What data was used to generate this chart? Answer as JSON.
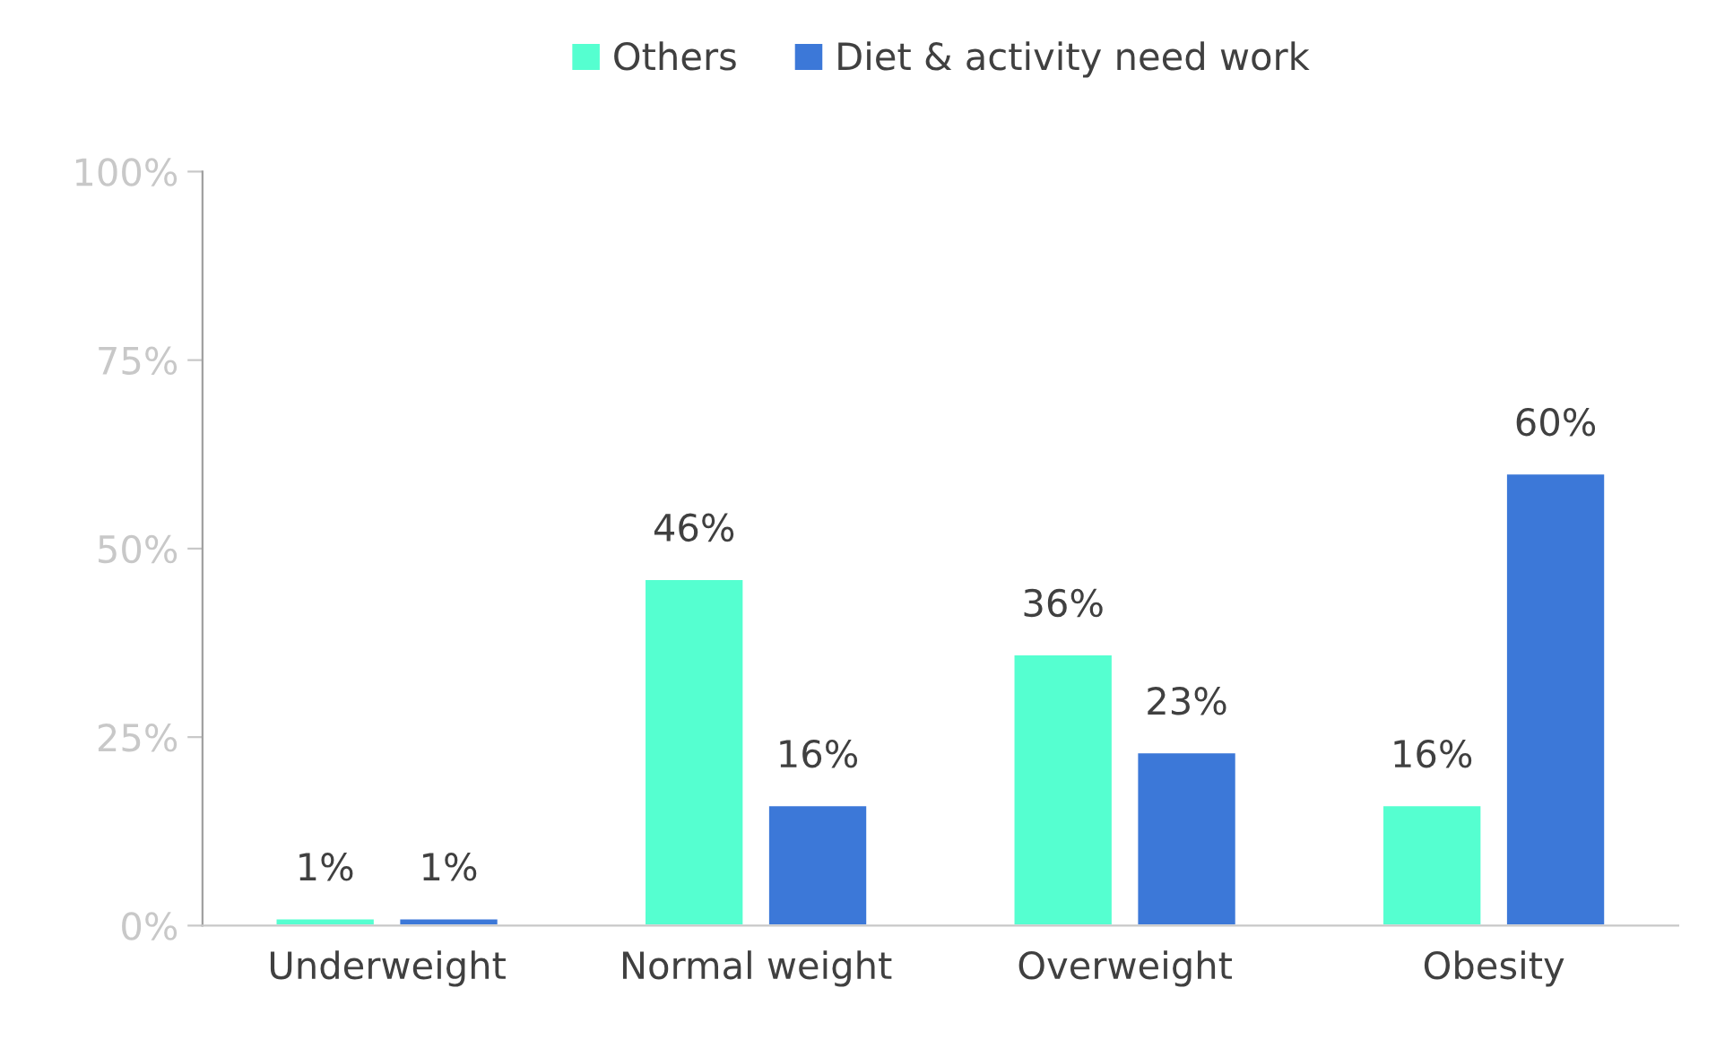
{
  "chart_data": {
    "type": "bar",
    "categories": [
      "Underweight",
      "Normal weight",
      "Overweight",
      "Obesity"
    ],
    "series": [
      {
        "name": "Others",
        "color": "#55ffd0",
        "values": [
          1,
          46,
          36,
          16
        ]
      },
      {
        "name": "Diet & activity need work",
        "color": "#3c78d8",
        "values": [
          1,
          16,
          23,
          60
        ]
      }
    ],
    "ylim": [
      0,
      100
    ],
    "yticks": [
      {
        "value": 0,
        "label": "0%"
      },
      {
        "value": 25,
        "label": "25%"
      },
      {
        "value": 50,
        "label": "50%"
      },
      {
        "value": 75,
        "label": "75%"
      },
      {
        "value": 100,
        "label": "100%"
      }
    ],
    "value_labels": [
      [
        "1%",
        "46%",
        "36%",
        "16%"
      ],
      [
        "1%",
        "16%",
        "23%",
        "60%"
      ]
    ],
    "grid": false,
    "legend": "top"
  }
}
